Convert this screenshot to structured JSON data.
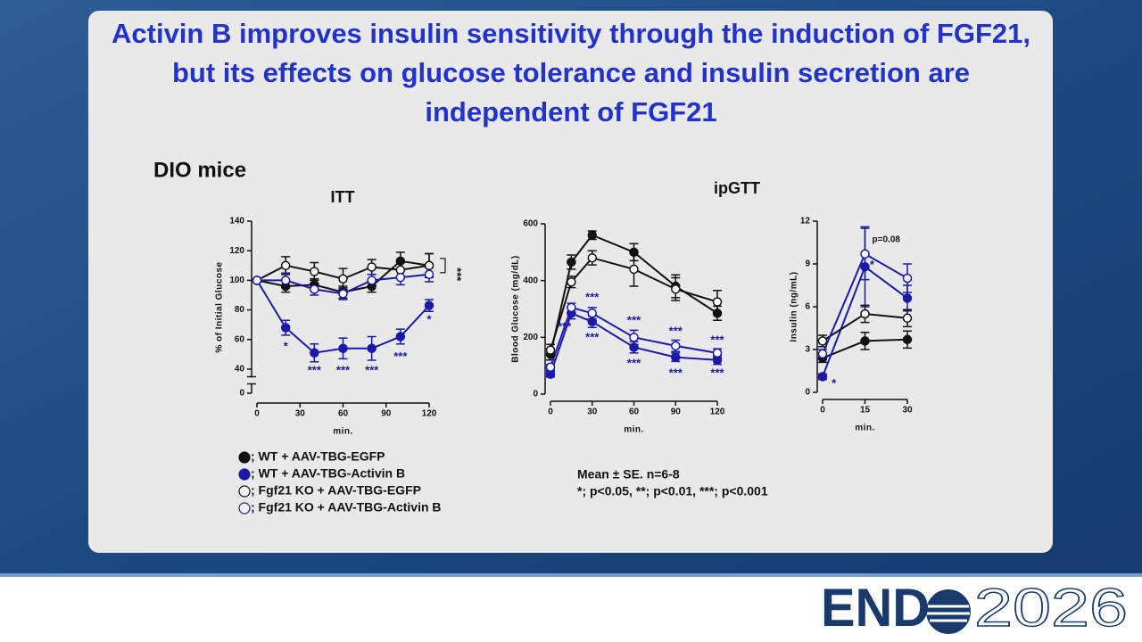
{
  "slide": {
    "title": "Activin B improves insulin sensitivity through the induction of FGF21, but its effects on glucose tolerance and insulin secretion are independent of FGF21",
    "subtitle": "DIO mice",
    "notes": [
      "Mean ± SE. n=6-8",
      "*; p<0.05, **; p<0.01, ***; p<0.001"
    ],
    "logo": {
      "left": "END",
      "right": "2026"
    }
  },
  "chart_data": [
    {
      "type": "line",
      "title": "ITT",
      "x_label": "min.",
      "y_label": "% of Initial Glucose",
      "x": [
        0,
        20,
        40,
        60,
        80,
        100,
        120
      ],
      "xlim": [
        0,
        120
      ],
      "xticks": [
        0,
        30,
        60,
        90,
        120
      ],
      "ylim": [
        0,
        140
      ],
      "yticks": [
        0,
        40,
        60,
        80,
        100,
        120,
        140
      ],
      "axis_break": true,
      "series": [
        {
          "name": "; WT + AAV-TBG-EGFP",
          "color": "#111111",
          "marker": "filled",
          "values": [
            100,
            96,
            97,
            92,
            96,
            113,
            110
          ],
          "errors": [
            0,
            4,
            4,
            4,
            4,
            6,
            8
          ]
        },
        {
          "name": "; WT + AAV-TBG-Activin B",
          "color": "#1a1aa8",
          "marker": "filled",
          "values": [
            100,
            68,
            51,
            54,
            54,
            62,
            83
          ],
          "errors": [
            0,
            5,
            6,
            7,
            8,
            5,
            4
          ]
        },
        {
          "name": "; Fgf21 KO + AAV-TBG-EGFP",
          "color": "#111111",
          "marker": "open",
          "values": [
            100,
            110,
            106,
            101,
            109,
            107,
            110
          ],
          "errors": [
            0,
            6,
            6,
            7,
            5,
            5,
            8
          ]
        },
        {
          "name": "; Fgf21 KO + AAV-TBG-Activin B",
          "color": "#1a1aa8",
          "marker": "open",
          "values": [
            100,
            100,
            94,
            91,
            100,
            102,
            104
          ],
          "errors": [
            0,
            5,
            4,
            4,
            4,
            5,
            5
          ]
        }
      ],
      "annotations": [
        {
          "text": "*",
          "x": 20,
          "y": 55,
          "color": "#1a1aa8"
        },
        {
          "text": "***",
          "x": 40,
          "y": 37,
          "color": "#1a1aa8"
        },
        {
          "text": "***",
          "x": 60,
          "y": 37,
          "color": "#1a1aa8"
        },
        {
          "text": "***",
          "x": 80,
          "y": 37,
          "color": "#1a1aa8"
        },
        {
          "text": "***",
          "x": 100,
          "y": 48,
          "color": "#1a1aa8"
        },
        {
          "text": "*",
          "x": 120,
          "y": 73,
          "color": "#1a1aa8"
        },
        {
          "text": "***",
          "x": 139,
          "y": 104,
          "color": "#111111",
          "vertical": true
        }
      ]
    },
    {
      "type": "line",
      "title": "ipGTT",
      "x_label": "min.",
      "y_label": "Blood Glucose (mg/dL)",
      "x": [
        0,
        15,
        30,
        60,
        90,
        120
      ],
      "xlim": [
        0,
        120
      ],
      "xticks": [
        0,
        30,
        60,
        90,
        120
      ],
      "ylim": [
        0,
        600
      ],
      "yticks": [
        0,
        200,
        400,
        600
      ],
      "series": [
        {
          "name": "; WT + AAV-TBG-EGFP",
          "color": "#111111",
          "marker": "filled",
          "values": [
            140,
            465,
            560,
            500,
            380,
            285
          ],
          "errors": [
            20,
            25,
            15,
            30,
            40,
            25
          ]
        },
        {
          "name": "; WT + AAV-TBG-Activin B",
          "color": "#1a1aa8",
          "marker": "filled",
          "values": [
            70,
            285,
            255,
            165,
            130,
            120
          ],
          "errors": [
            10,
            20,
            20,
            20,
            15,
            15
          ]
        },
        {
          "name": "; Fgf21 KO + AAV-TBG-EGFP",
          "color": "#111111",
          "marker": "open",
          "values": [
            155,
            395,
            480,
            440,
            370,
            325
          ],
          "errors": [
            20,
            20,
            25,
            60,
            40,
            40
          ]
        },
        {
          "name": "; Fgf21 KO + AAV-TBG-Activin B",
          "color": "#1a1aa8",
          "marker": "open",
          "values": [
            95,
            305,
            285,
            200,
            170,
            145
          ],
          "errors": [
            10,
            15,
            20,
            25,
            20,
            15
          ]
        }
      ],
      "annotations": [
        {
          "text": "***",
          "x": 10,
          "y": 235,
          "color": "#1a1aa8"
        },
        {
          "text": "***",
          "x": 30,
          "y": 339,
          "color": "#1a1aa8"
        },
        {
          "text": "***",
          "x": 30,
          "y": 198,
          "color": "#1a1aa8"
        },
        {
          "text": "***",
          "x": 60,
          "y": 258,
          "color": "#1a1aa8"
        },
        {
          "text": "***",
          "x": 60,
          "y": 107,
          "color": "#1a1aa8"
        },
        {
          "text": "***",
          "x": 90,
          "y": 220,
          "color": "#1a1aa8"
        },
        {
          "text": "***",
          "x": 90,
          "y": 72,
          "color": "#1a1aa8"
        },
        {
          "text": "***",
          "x": 120,
          "y": 188,
          "color": "#1a1aa8"
        },
        {
          "text": "***",
          "x": 120,
          "y": 72,
          "color": "#1a1aa8"
        }
      ]
    },
    {
      "type": "line",
      "x_label": "min.",
      "y_label": "Insulin (ng/mL)",
      "x": [
        0,
        15,
        30
      ],
      "xlim": [
        0,
        30
      ],
      "xticks": [
        0,
        15,
        30
      ],
      "ylim": [
        0,
        12
      ],
      "yticks": [
        0,
        3,
        6,
        9,
        12
      ],
      "series": [
        {
          "name": "; WT + AAV-TBG-EGFP",
          "color": "#111111",
          "marker": "filled",
          "values": [
            2.4,
            3.6,
            3.7
          ],
          "errors": [
            0.3,
            0.6,
            0.6
          ]
        },
        {
          "name": "; WT + AAV-TBG-Activin B",
          "color": "#1a1aa8",
          "marker": "filled",
          "values": [
            1.1,
            8.8,
            6.6
          ],
          "errors": [
            0.2,
            2.8,
            0.9
          ]
        },
        {
          "name": "; Fgf21 KO + AAV-TBG-EGFP",
          "color": "#111111",
          "marker": "open",
          "values": [
            3.6,
            5.5,
            5.2
          ],
          "errors": [
            0.4,
            0.6,
            0.6
          ]
        },
        {
          "name": "; Fgf21 KO + AAV-TBG-Activin B",
          "color": "#1a1aa8",
          "marker": "open",
          "values": [
            2.7,
            9.7,
            8.0
          ],
          "errors": [
            0.3,
            1.8,
            1.0
          ]
        }
      ],
      "annotations": [
        {
          "text": "*",
          "x": 4,
          "y": 0.6,
          "color": "#1a1aa8"
        },
        {
          "text": "*",
          "x": 17.5,
          "y": 8.9,
          "color": "#1a1aa8"
        },
        {
          "text": "p=0.08",
          "x": 22.5,
          "y": 10.7,
          "color": "#111111"
        }
      ]
    }
  ]
}
